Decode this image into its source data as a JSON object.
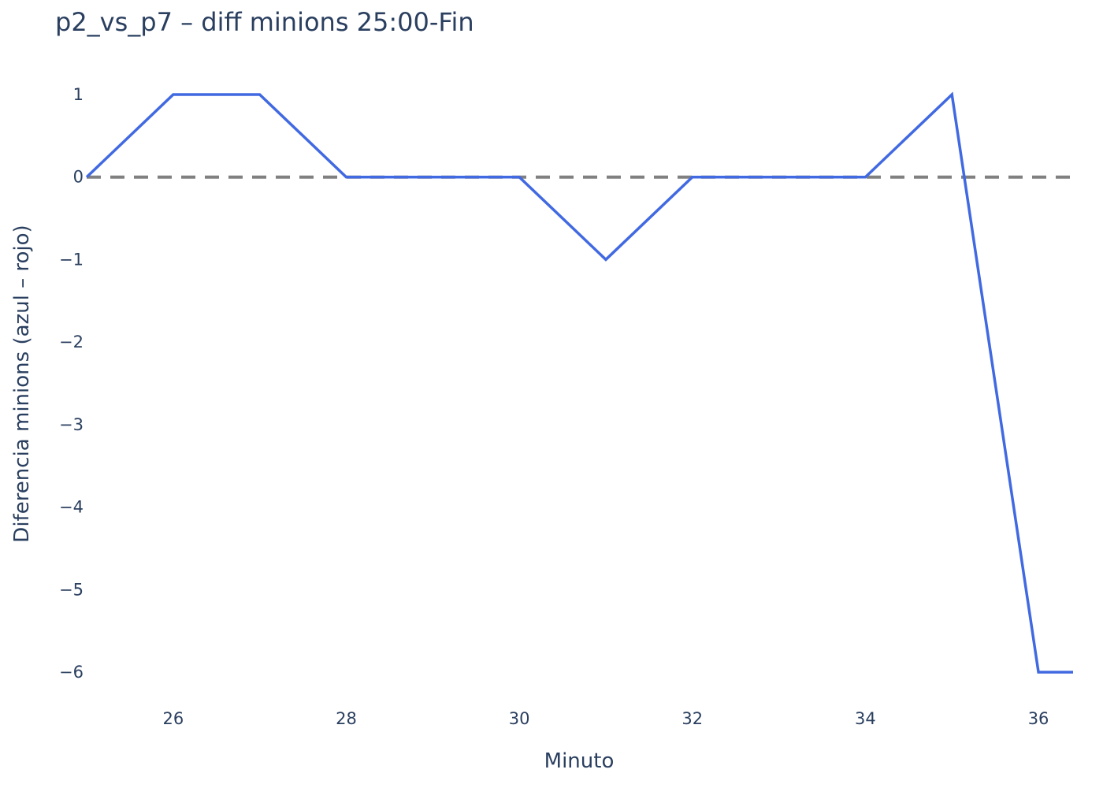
{
  "chart_data": {
    "type": "line",
    "title": "p2_vs_p7 – diff minions 25:00-Fin",
    "xlabel": "Minuto",
    "ylabel": "Diferencia minions (azul – rojo)",
    "xlim": [
      25,
      36.4
    ],
    "ylim": [
      -6.5,
      1.5
    ],
    "x_ticks": [
      26,
      28,
      30,
      32,
      34,
      36
    ],
    "y_ticks": [
      1,
      0,
      -1,
      -2,
      -3,
      -4,
      -5,
      -6
    ],
    "y_tick_labels": [
      "1",
      "0",
      "−1",
      "−2",
      "−3",
      "−4",
      "−5",
      "−6"
    ],
    "grid": false,
    "legend": "none",
    "series": [
      {
        "x": [
          25,
          26,
          27,
          28,
          29,
          30,
          31,
          32,
          33,
          34,
          35,
          36,
          36.4
        ],
        "values": [
          0,
          1,
          1,
          0,
          0,
          0,
          -1,
          0,
          0,
          0,
          1,
          -6,
          -6
        ],
        "color": "#4169e1"
      }
    ],
    "reference_line": {
      "y": 0,
      "style": "dashed",
      "color": "#808080"
    }
  }
}
